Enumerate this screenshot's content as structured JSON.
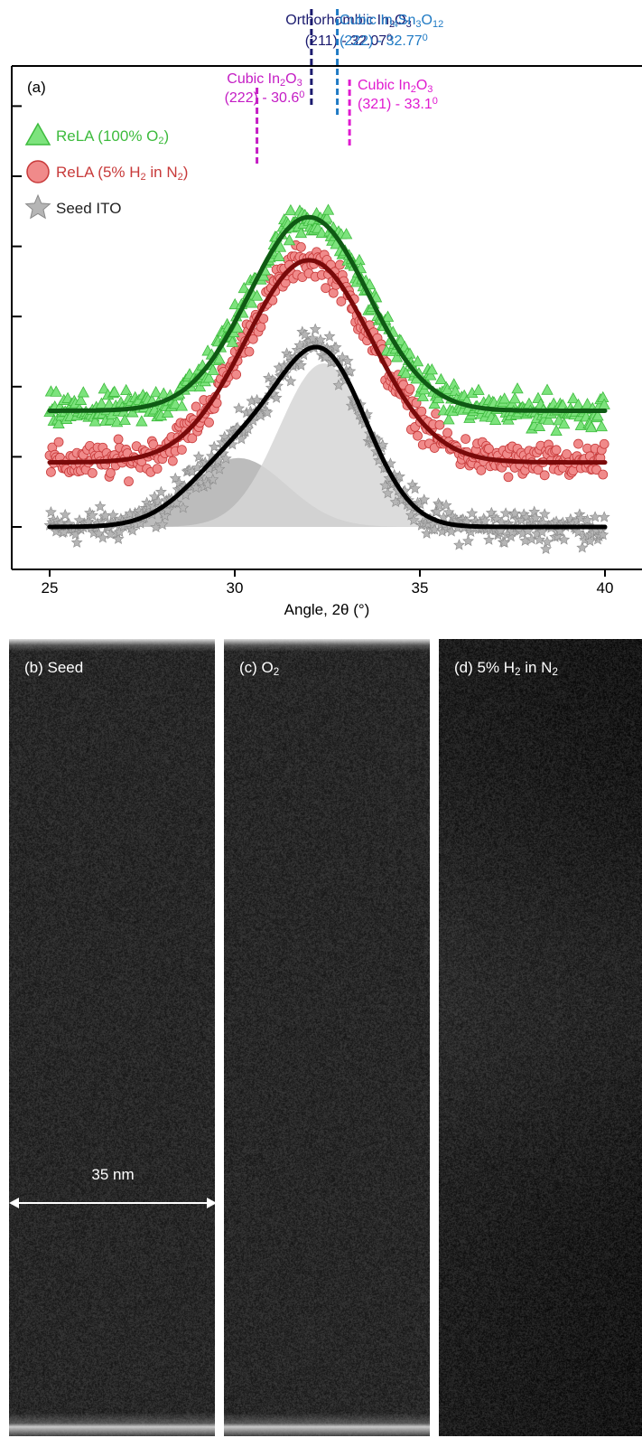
{
  "chart_data": {
    "type": "scatter",
    "panel_label": "(a)",
    "xlabel": "Angle, 2θ (°)",
    "xlim": [
      25,
      40
    ],
    "xticks": [
      "25",
      "30",
      "35",
      "40"
    ],
    "ylabel": "",
    "yticks_count": 7,
    "series": [
      {
        "name": "ReLA (100% O₂)",
        "name_parts": [
          "ReLA (100% O",
          "2",
          ")"
        ],
        "marker": "triangle",
        "color": "#3dbb3d",
        "fill": "#7de37d",
        "fit_color": "#0f5a14",
        "fit": {
          "baseline": 0.27,
          "peaks": [
            {
              "center": 32.0,
              "amplitude": 0.45,
              "sigma": 1.6
            }
          ]
        }
      },
      {
        "name": "ReLA (5% H₂ in N₂)",
        "name_parts": [
          "ReLA (5% H",
          "2",
          " in N",
          "2",
          ")"
        ],
        "marker": "circle",
        "color": "#c83a3a",
        "fill": "#f08a8a",
        "fit_color": "#7a0a0a",
        "fit": {
          "baseline": 0.15,
          "peaks": [
            {
              "center": 32.0,
              "amplitude": 0.47,
              "sigma": 1.7
            }
          ]
        }
      },
      {
        "name": "Seed ITO",
        "name_parts": [
          "Seed ITO"
        ],
        "marker": "star",
        "color": "#8a8a8a",
        "fill": "#b5b5b5",
        "fit_color": "#000000",
        "fit": {
          "baseline": 0.0,
          "peaks": [
            {
              "center": 30.1,
              "amplitude": 0.16,
              "sigma": 1.3
            },
            {
              "center": 32.4,
              "amplitude": 0.38,
              "sigma": 1.2
            }
          ]
        }
      }
    ],
    "shaded_peaks": [
      {
        "center": 30.1,
        "amplitude": 0.16,
        "sigma": 1.3,
        "color": "#b0b0b0"
      },
      {
        "center": 32.4,
        "amplitude": 0.38,
        "sigma": 1.2,
        "color": "#d6d6d6"
      }
    ],
    "reference_lines": [
      {
        "x": 30.6,
        "phase": [
          "Cubic In",
          "2",
          "O",
          "3"
        ],
        "info": [
          "(222) - 30.6",
          "0"
        ],
        "color": "#c41cc4"
      },
      {
        "x": 32.07,
        "phase": [
          "Orthorhombic In",
          "2",
          "O",
          "3"
        ],
        "info": [
          "(211) - 32.07",
          "0"
        ],
        "color": "#1a1a6e"
      },
      {
        "x": 32.77,
        "phase": [
          "Cubic In",
          "4",
          "Sn",
          "3",
          "O",
          "12"
        ],
        "info": [
          "(222) - 32.77",
          "0"
        ],
        "color": "#1f7ac4"
      },
      {
        "x": 33.1,
        "phase": [
          "Cubic In",
          "2",
          "O",
          "3"
        ],
        "info": [
          "(321) - 33.1",
          "0"
        ],
        "color": "#e01ad0"
      }
    ]
  },
  "tem_panels": [
    {
      "label_parts": [
        "(b) Seed"
      ]
    },
    {
      "label_parts": [
        "(c) O",
        "2"
      ]
    },
    {
      "label_parts": [
        "(d) 5% H",
        "2",
        " in N",
        "2"
      ]
    }
  ],
  "scale_bar": {
    "label": "35 nm"
  }
}
